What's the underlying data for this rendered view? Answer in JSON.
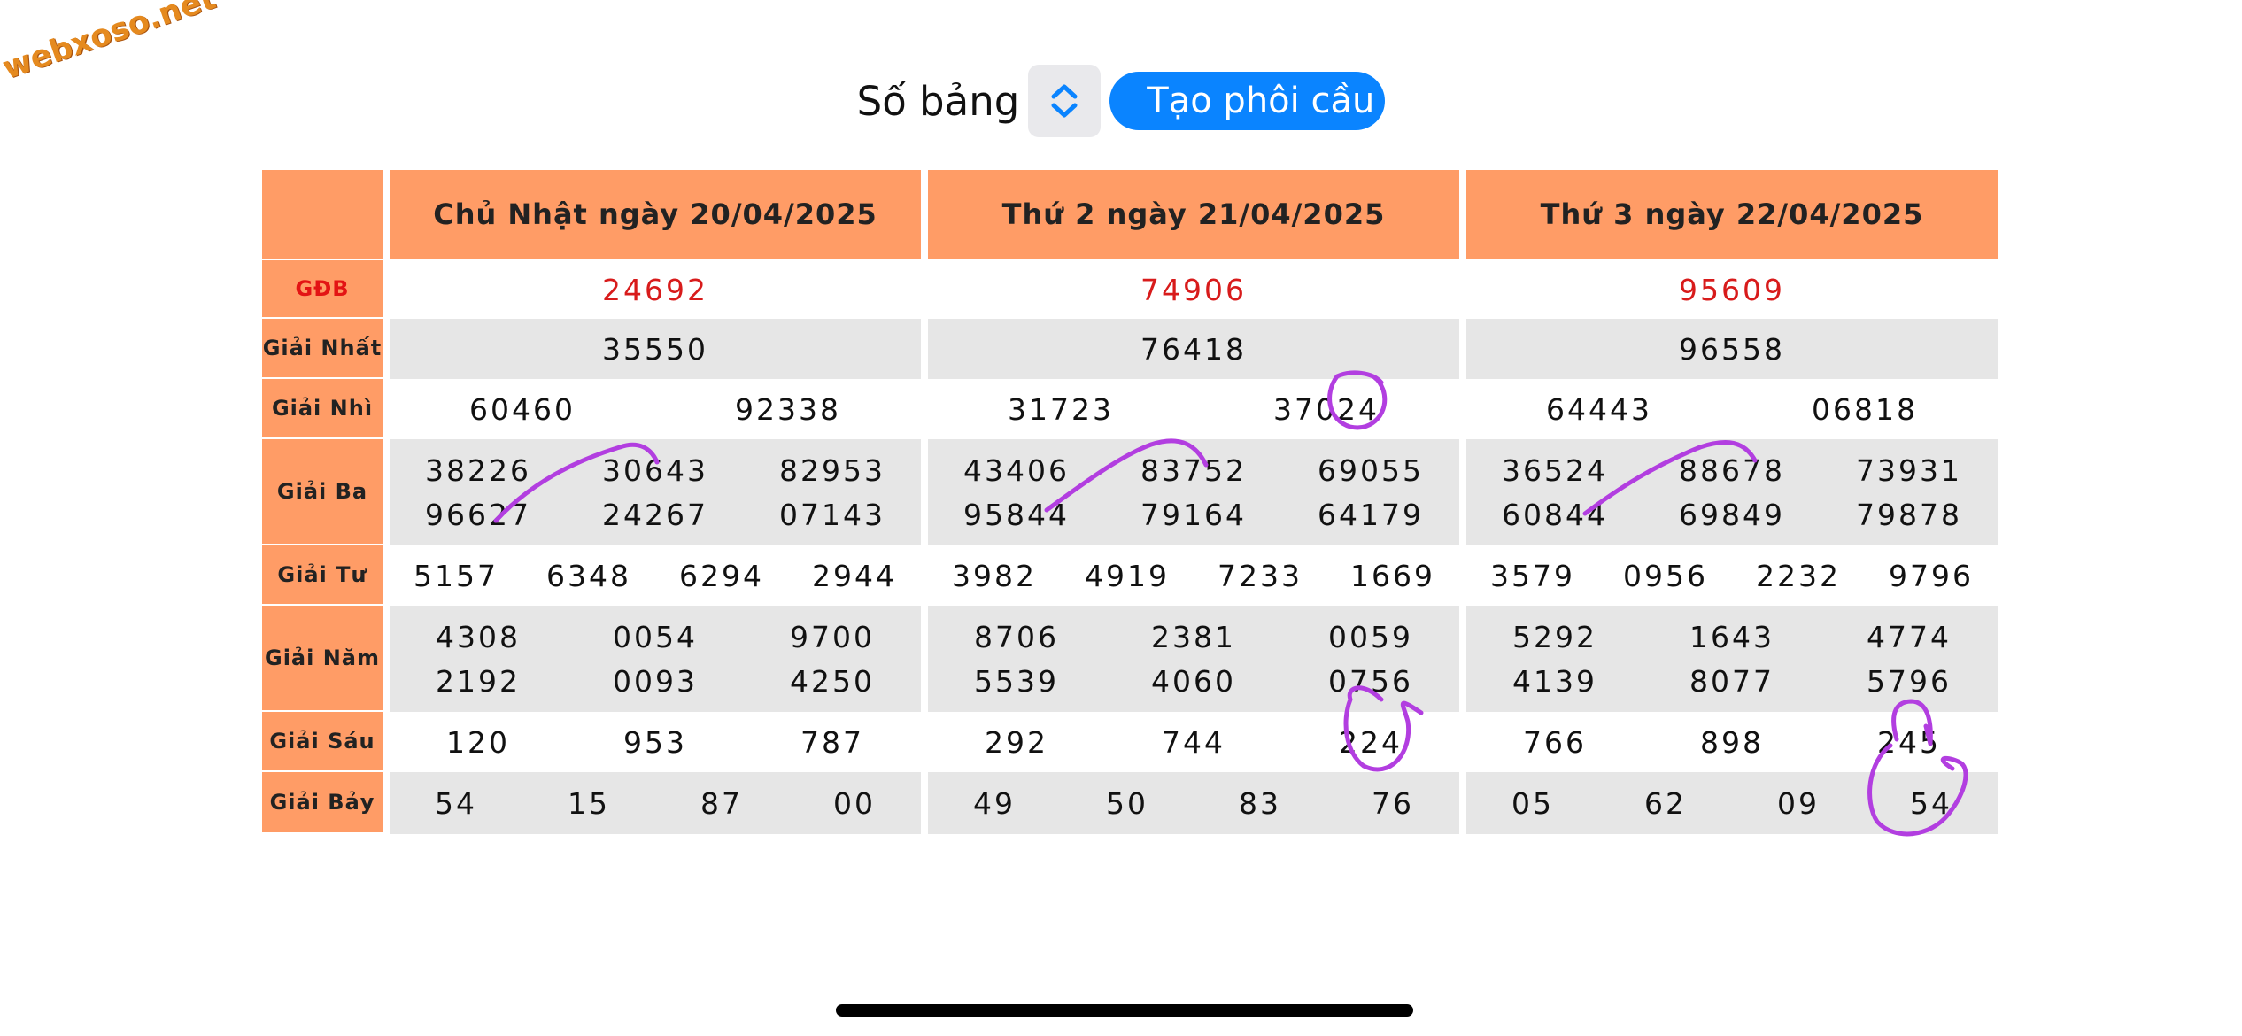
{
  "watermark": "webxoso.net",
  "toolbar": {
    "label": "Số bảng",
    "button_label": "Tạo phôi cầu"
  },
  "days": [
    {
      "title": "Chủ Nhật ngày 20/04/2025",
      "gdb": [
        "24692"
      ],
      "nhat": [
        "35550"
      ],
      "nhi": [
        "60460",
        "92338"
      ],
      "ba": [
        [
          "38226",
          "30643",
          "82953"
        ],
        [
          "96627",
          "24267",
          "07143"
        ]
      ],
      "tu": [
        "5157",
        "6348",
        "6294",
        "2944"
      ],
      "nam": [
        [
          "4308",
          "0054",
          "9700"
        ],
        [
          "2192",
          "0093",
          "4250"
        ]
      ],
      "sau": [
        "120",
        "953",
        "787"
      ],
      "bay": [
        "54",
        "15",
        "87",
        "00"
      ]
    },
    {
      "title": "Thứ 2 ngày 21/04/2025",
      "gdb": [
        "74906"
      ],
      "nhat": [
        "76418"
      ],
      "nhi": [
        "31723",
        "37024"
      ],
      "ba": [
        [
          "43406",
          "83752",
          "69055"
        ],
        [
          "95844",
          "79164",
          "64179"
        ]
      ],
      "tu": [
        "3982",
        "4919",
        "7233",
        "1669"
      ],
      "nam": [
        [
          "8706",
          "2381",
          "0059"
        ],
        [
          "5539",
          "4060",
          "0756"
        ]
      ],
      "sau": [
        "292",
        "744",
        "224"
      ],
      "bay": [
        "49",
        "50",
        "83",
        "76"
      ]
    },
    {
      "title": "Thứ 3 ngày 22/04/2025",
      "gdb": [
        "95609"
      ],
      "nhat": [
        "96558"
      ],
      "nhi": [
        "64443",
        "06818"
      ],
      "ba": [
        [
          "36524",
          "88678",
          "73931"
        ],
        [
          "60844",
          "69849",
          "79878"
        ]
      ],
      "tu": [
        "3579",
        "0956",
        "2232",
        "9796"
      ],
      "nam": [
        [
          "5292",
          "1643",
          "4774"
        ],
        [
          "4139",
          "8077",
          "5796"
        ]
      ],
      "sau": [
        "766",
        "898",
        "245"
      ],
      "bay": [
        "05",
        "62",
        "09",
        "54"
      ]
    }
  ],
  "row_labels": [
    "GĐB",
    "Giải Nhất",
    "Giải Nhì",
    "Giải Ba",
    "Giải Tư",
    "Giải Năm",
    "Giải Sáu",
    "Giải Bảy"
  ],
  "colors": {
    "header_bg": "#ff9c66",
    "special_prize": "#d81b1b",
    "button": "#0a84ff",
    "annotation": "#b23ee0"
  }
}
